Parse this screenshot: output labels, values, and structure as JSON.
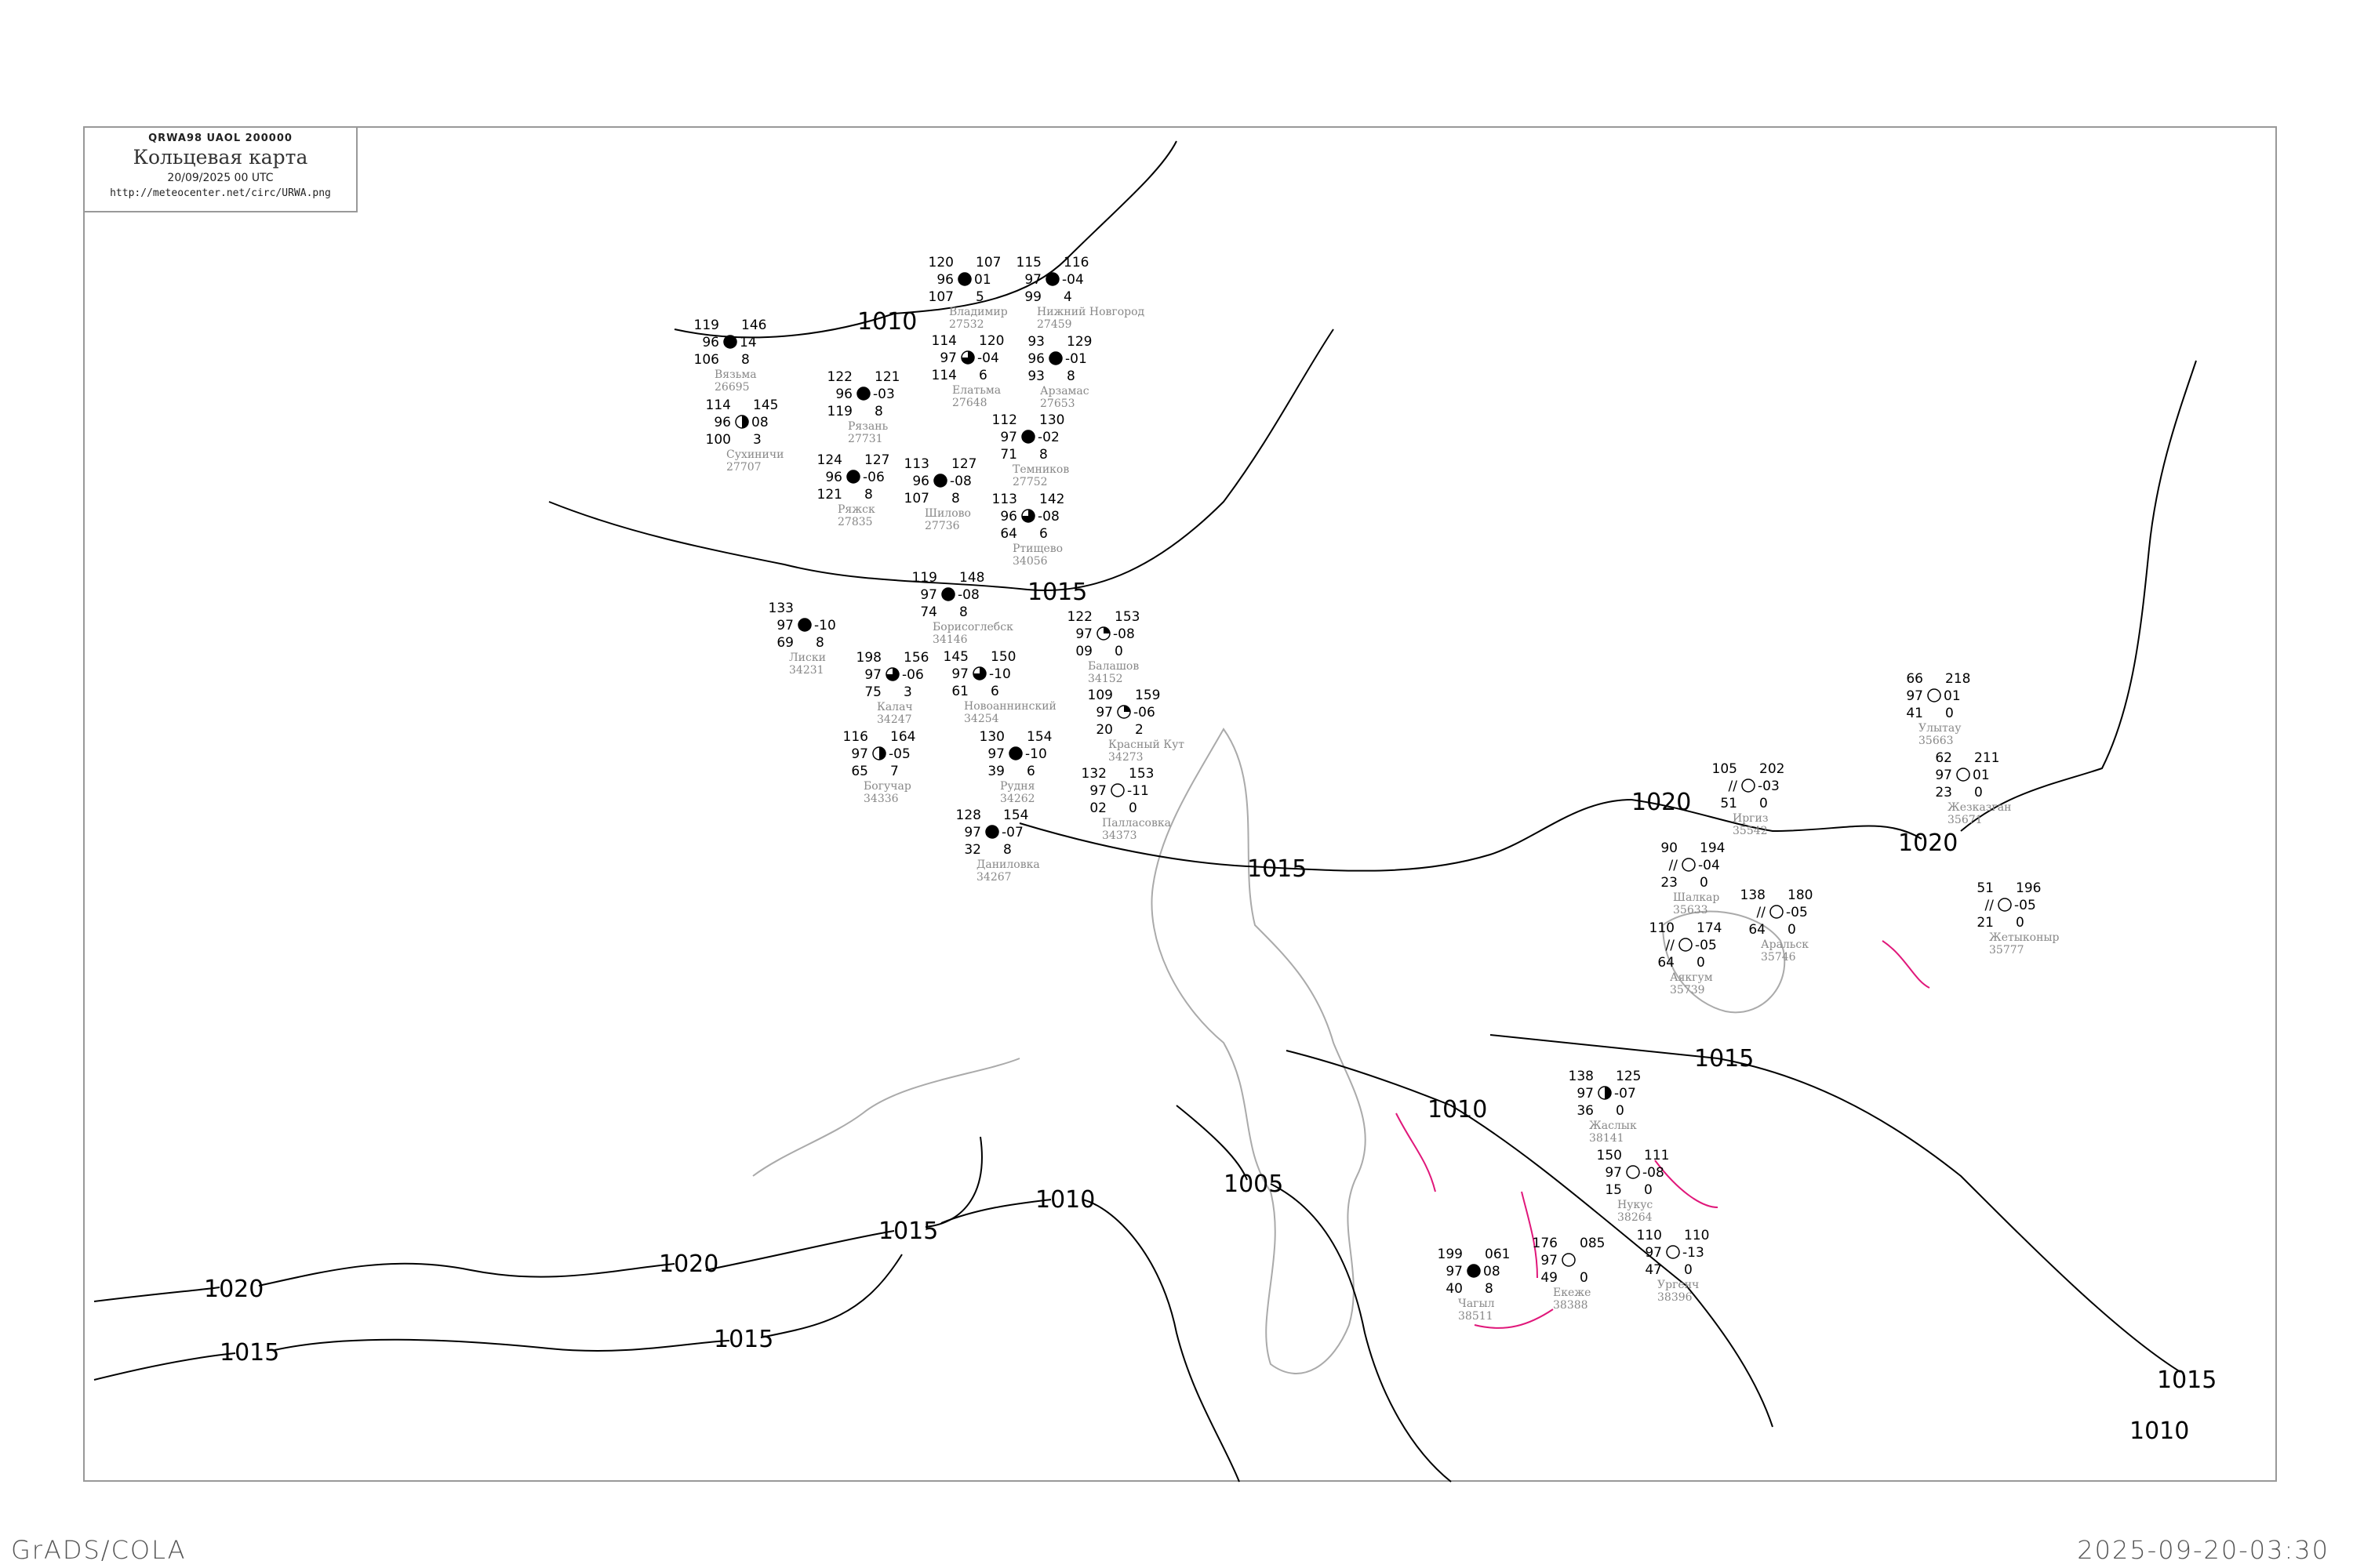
{
  "title_box": {
    "code": "QRWA98  UAOL  200000",
    "title": "Кольцевая карта",
    "date": "20/09/2025 00 UTC",
    "url": "http://meteocenter.net/circ/URWA.png"
  },
  "footer": {
    "left": "GrADS/COLA",
    "right": "2025-09-20-03:30"
  },
  "colors": {
    "isobar": "#000000",
    "coast": "#aaaaaa",
    "river": "#2a9df4",
    "front": "#e0177a",
    "precip": "#22c04a",
    "fog": "#ffff99"
  },
  "isobar_labels": [
    "1010",
    "1015",
    "1015",
    "1015",
    "1010",
    "1005",
    "1010",
    "1015",
    "1020",
    "1020",
    "1015",
    "1015",
    "1020",
    "1020",
    "1015",
    "1010"
  ],
  "stations": [
    {
      "name": "Борисоглебск",
      "id": "34146",
      "tl": "119",
      "ml": "97",
      "bl": "74",
      "tr": "148",
      "mr": "-08",
      "br": "8",
      "cover": 1
    },
    {
      "name": "Ртищево",
      "id": "34056",
      "tl": "113",
      "ml": "96",
      "bl": "64",
      "tr": "142",
      "mr": "-08",
      "br": "6",
      "cover": 0.75
    },
    {
      "name": "Балашов",
      "id": "34152",
      "tl": "122",
      "ml": "97",
      "bl": "09",
      "tr": "153",
      "mr": "-08",
      "br": "0",
      "cover": 0.25
    },
    {
      "name": "Калач",
      "id": "34247",
      "tl": "198",
      "ml": "97",
      "bl": "75",
      "tr": "156",
      "mr": "-06",
      "br": "3",
      "cover": 0.75
    },
    {
      "name": "Богучар",
      "id": "34336",
      "tl": "116",
      "ml": "97",
      "bl": "65",
      "tr": "164",
      "mr": "-05",
      "br": "7",
      "cover": 0.5
    },
    {
      "name": "Новоаннинский",
      "id": "34254",
      "tl": "145",
      "ml": "97",
      "bl": "61",
      "tr": "150",
      "mr": "-10",
      "br": "6",
      "cover": 0.75
    },
    {
      "name": "Рудня",
      "id": "34262",
      "tl": "130",
      "ml": "97",
      "bl": "39",
      "tr": "154",
      "mr": "-10",
      "br": "6",
      "cover": 1
    },
    {
      "name": "Красный Кут",
      "id": "34273",
      "tl": "109",
      "ml": "97",
      "bl": "20",
      "tr": "159",
      "mr": "-06",
      "br": "2",
      "cover": 0.25
    },
    {
      "name": "Палласовка",
      "id": "34373",
      "tl": "132",
      "ml": "97",
      "bl": "02",
      "tr": "153",
      "mr": "-11",
      "br": "0",
      "cover": 0
    },
    {
      "name": "Даниловка",
      "id": "34267",
      "tl": "128",
      "ml": "97",
      "bl": "32",
      "tr": "154",
      "mr": "-07",
      "br": "8",
      "cover": 1
    },
    {
      "name": "Лиски",
      "id": "34231",
      "tl": "133",
      "ml": "97",
      "bl": "69",
      "tr": "",
      "mr": "-10",
      "br": "8",
      "cover": 1
    },
    {
      "name": "Иргиз",
      "id": "35542",
      "tl": "105",
      "ml": "//",
      "bl": "51",
      "tr": "202",
      "mr": "-03",
      "br": "0",
      "cover": 0
    },
    {
      "name": "Шалкар",
      "id": "35633",
      "tl": "90",
      "ml": "//",
      "bl": "23",
      "tr": "194",
      "mr": "-04",
      "br": "0",
      "cover": 0
    },
    {
      "name": "Аральск",
      "id": "35746",
      "tl": "138",
      "ml": "//",
      "bl": "64",
      "tr": "180",
      "mr": "-05",
      "br": "0",
      "cover": 0
    },
    {
      "name": "Аякгум",
      "id": "35739",
      "tl": "110",
      "ml": "//",
      "bl": "64",
      "tr": "174",
      "mr": "-05",
      "br": "0",
      "cover": 0
    },
    {
      "name": "Жезказган",
      "id": "35671",
      "tl": "62",
      "ml": "97",
      "bl": "23",
      "tr": "211",
      "mr": "01",
      "br": "0",
      "cover": 0
    },
    {
      "name": "Улытау",
      "id": "35663",
      "tl": "66",
      "ml": "97",
      "bl": "41",
      "tr": "218",
      "mr": "01",
      "br": "0",
      "cover": 0
    },
    {
      "name": "Жетыконыр",
      "id": "35777",
      "tl": "51",
      "ml": "//",
      "bl": "21",
      "tr": "196",
      "mr": "-05",
      "br": "0",
      "cover": 0
    },
    {
      "name": "Чагыл",
      "id": "38511",
      "tl": "199",
      "ml": "97",
      "bl": "40",
      "tr": "061",
      "mr": "08",
      "br": "8",
      "cover": 1
    },
    {
      "name": "Екеже",
      "id": "38388",
      "tl": "176",
      "ml": "97",
      "bl": "49",
      "tr": "085",
      "mr": "",
      "br": "0",
      "cover": 0
    },
    {
      "name": "Ургенч",
      "id": "38396",
      "tl": "110",
      "ml": "97",
      "bl": "47",
      "tr": "110",
      "mr": "-13",
      "br": "0",
      "cover": 0
    },
    {
      "name": "Нукус",
      "id": "38264",
      "tl": "150",
      "ml": "97",
      "bl": "15",
      "tr": "111",
      "mr": "-08",
      "br": "0",
      "cover": 0
    },
    {
      "name": "Жаслык",
      "id": "38141",
      "tl": "138",
      "ml": "97",
      "bl": "36",
      "tr": "125",
      "mr": "-07",
      "br": "0",
      "cover": 0.5
    },
    {
      "name": "Владимир",
      "id": "27532",
      "tl": "120",
      "ml": "96",
      "bl": "107",
      "tr": "107",
      "mr": "01",
      "br": "5",
      "cover": 1
    },
    {
      "name": "Нижний Новгород",
      "id": "27459",
      "tl": "115",
      "ml": "97",
      "bl": "99",
      "tr": "116",
      "mr": "-04",
      "br": "4",
      "cover": 1
    },
    {
      "name": "Арзамас",
      "id": "27653",
      "tl": "93",
      "ml": "96",
      "bl": "93",
      "tr": "129",
      "mr": "-01",
      "br": "8",
      "cover": 1
    },
    {
      "name": "Темников",
      "id": "27752",
      "tl": "112",
      "ml": "97",
      "bl": "71",
      "tr": "130",
      "mr": "-02",
      "br": "8",
      "cover": 1
    },
    {
      "name": "Шилово",
      "id": "27736",
      "tl": "113",
      "ml": "96",
      "bl": "107",
      "tr": "127",
      "mr": "-08",
      "br": "8",
      "cover": 1
    },
    {
      "name": "Рязань",
      "id": "27731",
      "tl": "122",
      "ml": "96",
      "bl": "119",
      "tr": "121",
      "mr": "-03",
      "br": "8",
      "cover": 1
    },
    {
      "name": "Елатьма",
      "id": "27648",
      "tl": "114",
      "ml": "97",
      "bl": "114",
      "tr": "120",
      "mr": "-04",
      "br": "6",
      "cover": 0.75
    },
    {
      "name": "Ряжск",
      "id": "27835",
      "tl": "124",
      "ml": "96",
      "bl": "121",
      "tr": "127",
      "mr": "-06",
      "br": "8",
      "cover": 1
    },
    {
      "name": "Вязьма",
      "id": "26695",
      "tl": "119",
      "ml": "96",
      "bl": "106",
      "tr": "146",
      "mr": "14",
      "br": "8",
      "cover": 1
    },
    {
      "name": "Сухиничи",
      "id": "27707",
      "tl": "114",
      "ml": "96",
      "bl": "100",
      "tr": "145",
      "mr": "08",
      "br": "3",
      "cover": 0.5
    }
  ]
}
